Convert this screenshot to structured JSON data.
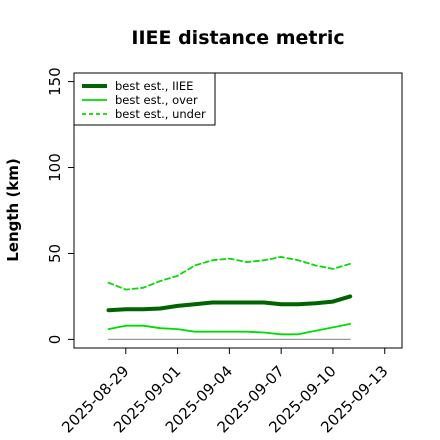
{
  "chart_data": {
    "type": "line",
    "title": "IIEE distance metric",
    "xlabel": "",
    "ylabel": "Length (km)",
    "x_ticks": [
      "2025-08-29",
      "2025-09-01",
      "2025-09-04",
      "2025-09-07",
      "2025-09-10",
      "2025-09-13"
    ],
    "y_ticks": [
      "0",
      "50",
      "100",
      "150"
    ],
    "xlim": [
      "2025-08-26",
      "2025-09-14"
    ],
    "ylim": [
      -5,
      155
    ],
    "legend_position": "top-left",
    "x": [
      "2025-08-28",
      "2025-08-29",
      "2025-08-30",
      "2025-08-31",
      "2025-09-01",
      "2025-09-02",
      "2025-09-03",
      "2025-09-04",
      "2025-09-05",
      "2025-09-06",
      "2025-09-07",
      "2025-09-08",
      "2025-09-09",
      "2025-09-10",
      "2025-09-11"
    ],
    "series": [
      {
        "name": "best est., IIEE",
        "style": "solid-thick",
        "color": "#006400",
        "values": [
          17,
          17.5,
          17.5,
          18,
          19.5,
          20.5,
          21.5,
          21.5,
          21.5,
          21.5,
          20.5,
          20.5,
          21,
          22,
          25
        ]
      },
      {
        "name": "best est., over",
        "style": "solid",
        "color": "#00dd00",
        "values": [
          6,
          8,
          8,
          6.5,
          6,
          4.5,
          4.5,
          4.5,
          4.5,
          4,
          3,
          3,
          5,
          7,
          9
        ]
      },
      {
        "name": "best est., under",
        "style": "dashed",
        "color": "#00dd00",
        "values": [
          33,
          29,
          30,
          34,
          37,
          43,
          46,
          47,
          45,
          46,
          48,
          46,
          43,
          41,
          44
        ]
      },
      {
        "name": "",
        "style": "solid-thin",
        "color": "#999999",
        "values": [
          0,
          0,
          0,
          0,
          0,
          0,
          0,
          0,
          0,
          0,
          0,
          0,
          0,
          0,
          0
        ]
      }
    ]
  }
}
